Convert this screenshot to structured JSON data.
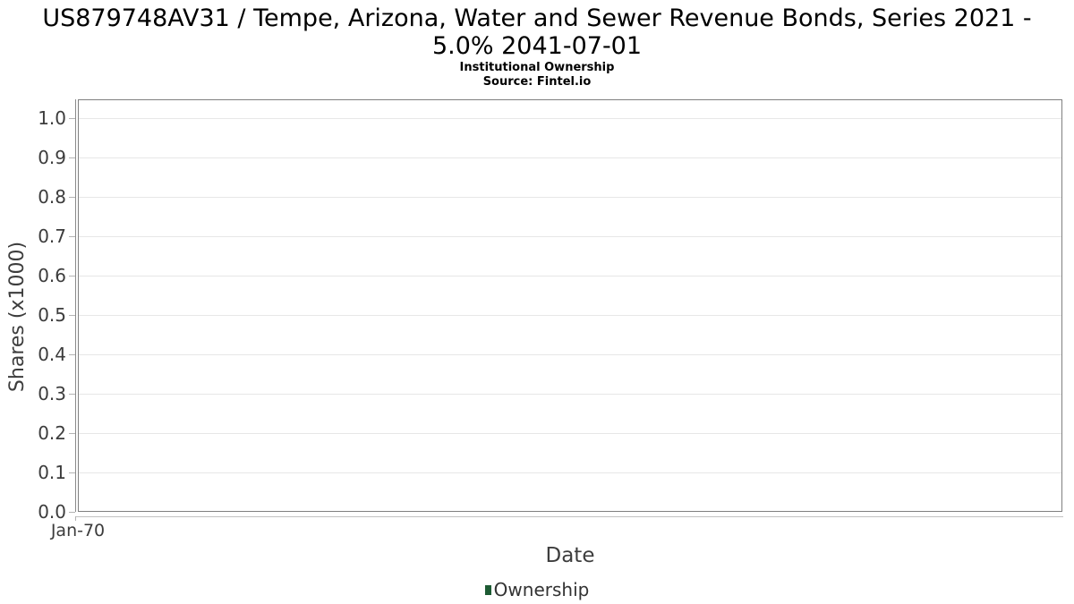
{
  "header": {
    "title_line1": "US879748AV31 / Tempe, Arizona, Water and Sewer Revenue Bonds, Series 2021 -",
    "title_line2": "5.0% 2041-07-01",
    "subtitle": "Institutional Ownership",
    "source": "Source: Fintel.io"
  },
  "chart_data": {
    "type": "line",
    "title": "US879748AV31 / Tempe, Arizona, Water and Sewer Revenue Bonds, Series 2021 - 5.0% 2041-07-01",
    "subtitle": "Institutional Ownership",
    "source": "Source: Fintel.io",
    "xlabel": "Date",
    "ylabel": "Shares (x1000)",
    "x_tick_labels": [
      "Jan-70"
    ],
    "y_tick_labels": [
      "0.0",
      "0.1",
      "0.2",
      "0.3",
      "0.4",
      "0.5",
      "0.6",
      "0.7",
      "0.8",
      "0.9",
      "1.0"
    ],
    "ylim": [
      0.0,
      1.048
    ],
    "grid": "horizontal-only",
    "legend_position": "bottom",
    "series": [
      {
        "name": "Ownership",
        "color": "#1d5b33",
        "points": []
      }
    ],
    "colors": {
      "plot_border": "#7f7f7f",
      "gridline": "#e7e7e7",
      "series_green": "#1d5b33",
      "tick_text": "#3c3c3c"
    }
  },
  "legend": {
    "label": "Ownership",
    "marker_color": "#1d5b33"
  }
}
